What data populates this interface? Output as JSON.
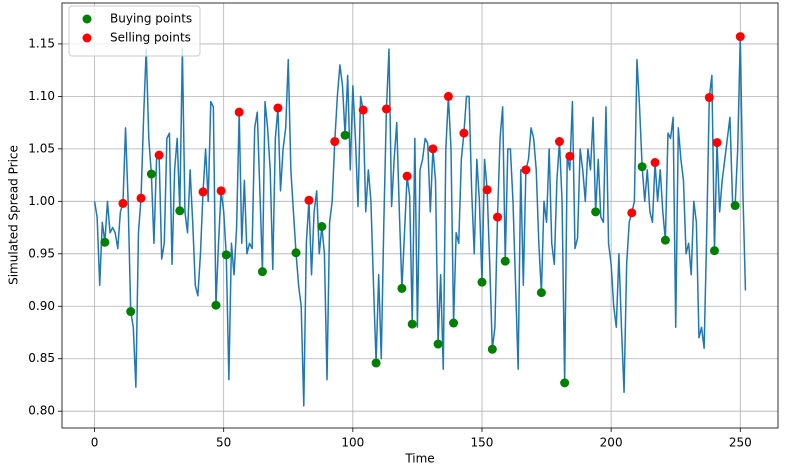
{
  "chart_data": {
    "type": "line",
    "xlabel": "Time",
    "ylabel": "Simulated Spread Price",
    "xlim": [
      -12.6,
      264.6
    ],
    "ylim": [
      0.784,
      1.189
    ],
    "xticks": [
      0,
      50,
      100,
      150,
      200,
      250
    ],
    "yticks": [
      {
        "value": 0.8,
        "label": "0.80"
      },
      0.85,
      {
        "value": 0.9,
        "label": "0.90"
      },
      0.95,
      {
        "value": 1.0,
        "label": "1.00"
      },
      1.05,
      {
        "value": 1.1,
        "label": "1.10"
      },
      1.15
    ],
    "grid": true,
    "legend": "upper left",
    "series": [
      {
        "type": "line",
        "color": "#1f77b4",
        "x": [
          0,
          1,
          2,
          3,
          4,
          5,
          6,
          7,
          8,
          9,
          10,
          11,
          12,
          13,
          14,
          15,
          16,
          17,
          18,
          19,
          20,
          21,
          22,
          23,
          24,
          25,
          26,
          27,
          28,
          29,
          30,
          31,
          32,
          33,
          34,
          35,
          36,
          37,
          38,
          39,
          40,
          41,
          42,
          43,
          44,
          45,
          46,
          47,
          48,
          49,
          50,
          51,
          52,
          53,
          54,
          55,
          56,
          57,
          58,
          59,
          60,
          61,
          62,
          63,
          64,
          65,
          66,
          67,
          68,
          69,
          70,
          71,
          72,
          73,
          74,
          75,
          76,
          77,
          78,
          79,
          80,
          81,
          82,
          83,
          84,
          85,
          86,
          87,
          88,
          89,
          90,
          91,
          92,
          93,
          94,
          95,
          96,
          97,
          98,
          99,
          100,
          101,
          102,
          103,
          104,
          105,
          106,
          107,
          108,
          109,
          110,
          111,
          112,
          113,
          114,
          115,
          116,
          117,
          118,
          119,
          120,
          121,
          122,
          123,
          124,
          125,
          126,
          127,
          128,
          129,
          130,
          131,
          132,
          133,
          134,
          135,
          136,
          137,
          138,
          139,
          140,
          141,
          142,
          143,
          144,
          145,
          146,
          147,
          148,
          149,
          150,
          151,
          152,
          153,
          154,
          155,
          156,
          157,
          158,
          159,
          160,
          161,
          162,
          163,
          164,
          165,
          166,
          167,
          168,
          169,
          170,
          171,
          172,
          173,
          174,
          175,
          176,
          177,
          178,
          179,
          180,
          181,
          182,
          183,
          184,
          185,
          186,
          187,
          188,
          189,
          190,
          191,
          192,
          193,
          194,
          195,
          196,
          197,
          198,
          199,
          200,
          201,
          202,
          203,
          204,
          205,
          206,
          207,
          208,
          209,
          210,
          211,
          212,
          213,
          214,
          215,
          216,
          217,
          218,
          219,
          220,
          221,
          222,
          223,
          224,
          225,
          226,
          227,
          228,
          229,
          230,
          231,
          232,
          233,
          234,
          235,
          236,
          237,
          238,
          239,
          240,
          241,
          242,
          243,
          244,
          245,
          246,
          247,
          248,
          249,
          250,
          251,
          252
        ],
        "values": [
          1.0,
          0.985,
          0.92,
          0.98,
          0.961,
          1.0,
          0.97,
          0.975,
          0.97,
          0.955,
          0.99,
          0.998,
          1.07,
          1.0,
          0.895,
          0.88,
          0.823,
          0.97,
          1.003,
          1.08,
          1.145,
          1.06,
          1.026,
          0.96,
          1.04,
          1.044,
          0.945,
          0.96,
          1.06,
          1.065,
          0.94,
          1.03,
          1.06,
          0.991,
          1.145,
          0.99,
          0.97,
          1.03,
          0.98,
          0.92,
          0.91,
          0.95,
          1.009,
          1.05,
          1.0,
          1.095,
          1.09,
          0.901,
          0.96,
          1.01,
          0.99,
          0.949,
          0.83,
          0.96,
          0.93,
          0.975,
          1.085,
          0.96,
          1.02,
          0.95,
          0.96,
          0.955,
          1.07,
          1.085,
          1.01,
          0.933,
          1.095,
          1.07,
          1.03,
          0.935,
          1.06,
          1.089,
          1.01,
          1.05,
          1.07,
          1.135,
          1.03,
          0.99,
          0.951,
          0.92,
          0.9,
          0.805,
          0.96,
          1.001,
          0.93,
          0.99,
          1.01,
          0.95,
          0.976,
          0.95,
          0.83,
          0.98,
          1.0,
          1.057,
          1.1,
          1.13,
          1.11,
          1.063,
          1.12,
          1.03,
          1.11,
          1.06,
          0.995,
          1.1,
          1.087,
          0.99,
          1.03,
          1.0,
          0.92,
          0.846,
          0.93,
          0.85,
          0.98,
          1.088,
          1.145,
          0.995,
          1.04,
          1.075,
          0.99,
          0.917,
          0.97,
          1.024,
          1.005,
          0.883,
          1.06,
          0.88,
          1.03,
          1.04,
          1.06,
          1.055,
          0.99,
          1.05,
          1.02,
          0.864,
          0.93,
          0.84,
          1.05,
          1.1,
          1.05,
          0.884,
          0.97,
          0.96,
          1.04,
          1.065,
          1.1,
          1.1,
          1.01,
          0.95,
          1.04,
          1.0,
          0.923,
          1.04,
          1.011,
          0.94,
          0.859,
          0.88,
          0.985,
          1.06,
          1.09,
          0.943,
          1.05,
          1.05,
          1.0,
          0.92,
          0.84,
          1.03,
          0.92,
          1.03,
          1.04,
          1.07,
          1.06,
          1.03,
          0.96,
          0.913,
          1.0,
          0.98,
          1.05,
          0.96,
          0.94,
          1.02,
          1.057,
          1.0,
          0.827,
          1.043,
          1.03,
          1.095,
          0.955,
          0.965,
          1.05,
          1.03,
          1.0,
          1.05,
          1.03,
          1.08,
          0.99,
          1.04,
          0.985,
          0.98,
          1.09,
          0.96,
          0.94,
          0.9,
          0.88,
          0.95,
          0.88,
          0.818,
          0.94,
          0.98,
          0.989,
          1.0,
          1.135,
          1.09,
          1.033,
          1.0,
          1.03,
          0.99,
          0.98,
          1.037,
          1.0,
          1.03,
          0.99,
          0.963,
          1.065,
          1.06,
          1.08,
          0.88,
          1.07,
          1.04,
          1.02,
          0.95,
          0.96,
          0.93,
          1.0,
          0.98,
          0.87,
          0.88,
          0.86,
          0.97,
          1.099,
          1.12,
          0.953,
          1.056,
          0.99,
          1.02,
          1.04,
          1.06,
          1.08,
          1.0,
          0.996,
          1.05,
          1.157,
          1.01,
          0.915
        ]
      },
      {
        "type": "scatter",
        "name": "Buying points",
        "color": "#008000",
        "x": [
          4,
          14,
          22,
          33,
          47,
          51,
          65,
          78,
          88,
          97,
          109,
          119,
          123,
          133,
          139,
          150,
          154,
          159,
          173,
          182,
          194,
          212,
          221,
          240,
          248
        ],
        "values": [
          0.961,
          0.895,
          1.026,
          0.991,
          0.901,
          0.949,
          0.933,
          0.951,
          0.976,
          1.063,
          0.846,
          0.917,
          0.883,
          0.864,
          0.884,
          0.923,
          0.859,
          0.943,
          0.913,
          0.827,
          0.99,
          1.033,
          0.963,
          0.953,
          0.996
        ]
      },
      {
        "type": "scatter",
        "name": "Selling points",
        "color": "#ff0000",
        "x": [
          11,
          18,
          25,
          42,
          49,
          56,
          71,
          83,
          93,
          104,
          113,
          121,
          131,
          137,
          143,
          152,
          156,
          167,
          180,
          184,
          208,
          217,
          238,
          241,
          250
        ],
        "values": [
          0.998,
          1.003,
          1.044,
          1.009,
          1.01,
          1.085,
          1.089,
          1.001,
          1.057,
          1.087,
          1.088,
          1.024,
          1.05,
          1.1,
          1.065,
          1.011,
          0.985,
          1.03,
          1.057,
          1.043,
          0.989,
          1.037,
          1.099,
          1.056,
          1.157
        ]
      }
    ]
  }
}
